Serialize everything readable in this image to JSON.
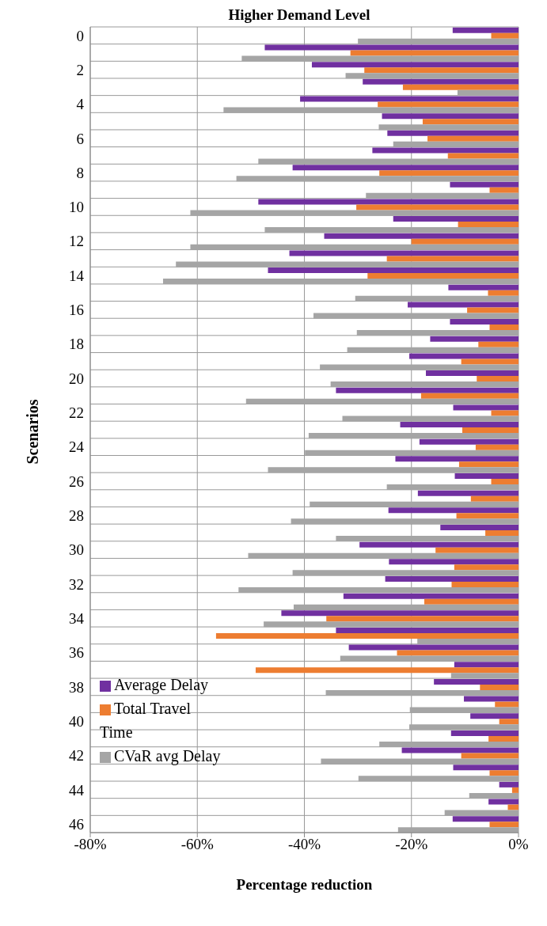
{
  "chart_data": {
    "type": "bar",
    "orientation": "horizontal",
    "title": "Higher Demand Level",
    "xlabel": "Percentage reduction",
    "ylabel": "Scenarios",
    "categories": [
      "0",
      null,
      "2",
      null,
      "4",
      null,
      "6",
      null,
      "8",
      null,
      "10",
      null,
      "12",
      null,
      "14",
      null,
      "16",
      null,
      "18",
      null,
      "20",
      null,
      "22",
      null,
      "24",
      null,
      "26",
      null,
      "28",
      null,
      "30",
      null,
      "32",
      null,
      "34",
      null,
      "36",
      null,
      "38",
      null,
      "40",
      null,
      "42",
      null,
      "44",
      null,
      "46"
    ],
    "series": [
      {
        "name": "Average Delay",
        "color": "#7030a0",
        "values": [
          -12.3,
          -47.4,
          -38.6,
          -29.1,
          -40.8,
          -25.5,
          -24.5,
          -27.3,
          -42.2,
          -12.8,
          -48.6,
          -23.4,
          -36.3,
          -42.8,
          -46.8,
          -13.1,
          -20.7,
          -12.8,
          -16.5,
          -20.4,
          -17.3,
          -34.1,
          -12.2,
          -22.1,
          -18.5,
          -23.0,
          -11.9,
          -18.8,
          -24.3,
          -14.6,
          -29.7,
          -24.2,
          -24.9,
          -32.7,
          -44.3,
          -34.1,
          -31.7,
          -12.0,
          -15.8,
          -10.2,
          -9.0,
          -12.6,
          -21.8,
          -12.2,
          -3.6,
          -5.6,
          -12.3
        ]
      },
      {
        "name": "Total Travel Time",
        "color": "#ed7d31",
        "values": [
          -5.1,
          -31.4,
          -28.8,
          -21.6,
          -26.3,
          -17.9,
          -17.0,
          -13.2,
          -26.0,
          -5.4,
          -30.3,
          -11.3,
          -20.0,
          -24.6,
          -28.2,
          -5.7,
          -9.6,
          -5.4,
          -7.5,
          -10.7,
          -7.8,
          -18.2,
          -5.1,
          -10.5,
          -8.0,
          -11.1,
          -5.1,
          -8.9,
          -11.6,
          -6.2,
          -15.5,
          -12.0,
          -12.5,
          -17.6,
          -35.9,
          -56.5,
          -22.7,
          -49.1,
          -7.2,
          -4.4,
          -3.6,
          -5.6,
          -10.7,
          -5.4,
          -1.2,
          -2.0,
          -5.4
        ]
      },
      {
        "name": "CVaR avg Delay",
        "color": "#a5a5a5",
        "values": [
          -30.0,
          -51.7,
          -32.3,
          -11.4,
          -55.1,
          -26.1,
          -23.4,
          -48.6,
          -52.7,
          -28.5,
          -61.3,
          -47.4,
          -61.3,
          -64.0,
          -66.4,
          -30.5,
          -38.3,
          -30.2,
          -32.0,
          -37.1,
          -35.1,
          -50.9,
          -32.9,
          -39.2,
          -39.9,
          -46.8,
          -24.6,
          -39.0,
          -42.5,
          -34.1,
          -50.5,
          -42.2,
          -52.3,
          -42.0,
          -47.6,
          -18.9,
          -33.3,
          -12.6,
          -36.0,
          -20.3,
          -20.4,
          -26.0,
          -36.9,
          -29.9,
          -9.2,
          -13.8,
          -22.5
        ]
      }
    ],
    "xlim": [
      -80,
      0
    ],
    "xticks": [
      {
        "value": -80,
        "label": "-80%"
      },
      {
        "value": -60,
        "label": "-60%"
      },
      {
        "value": -40,
        "label": "-40%"
      },
      {
        "value": -20,
        "label": "-20%"
      },
      {
        "value": 0,
        "label": "0%"
      }
    ],
    "grid": true,
    "legend": "bottom left"
  }
}
